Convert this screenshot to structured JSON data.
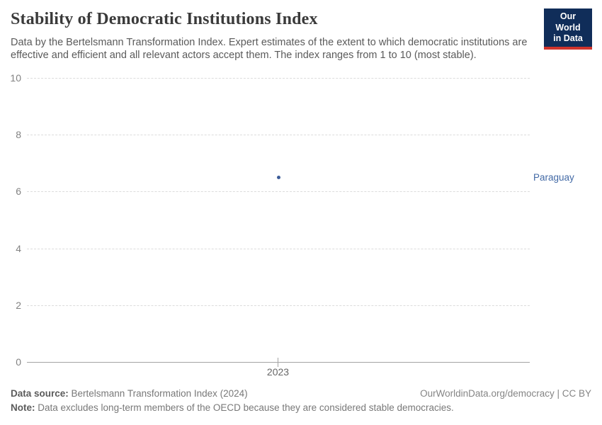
{
  "header": {
    "title": "Stability of Democratic Institutions Index",
    "subtitle": "Data by the Bertelsmann Transformation Index. Expert estimates of the extent to which democratic institutions are effective and efficient and all relevant actors accept them. The index ranges from 1 to 10 (most stable)."
  },
  "logo": {
    "line1": "Our World",
    "line2": "in Data",
    "bg_color": "#102d59",
    "accent_color": "#d0342c"
  },
  "chart_data": {
    "type": "scatter",
    "title": "Stability of Democratic Institutions Index",
    "x": [
      2023
    ],
    "series": [
      {
        "name": "Paraguay",
        "values": [
          6.5
        ]
      }
    ],
    "ylim": [
      0,
      10
    ],
    "yticks": [
      0,
      2,
      4,
      6,
      8,
      10
    ],
    "grid": "horizontal dashed",
    "legend_position": "right-entity-label",
    "point_color": "#3c5c98",
    "label_color": "#4269a5"
  },
  "footer": {
    "source_label": "Data source:",
    "source_text": " Bertelsmann Transformation Index (2024)",
    "rights": "OurWorldinData.org/democracy | CC BY",
    "note_label": "Note:",
    "note_text": " Data excludes long-term members of the OECD because they are considered stable democracies."
  }
}
